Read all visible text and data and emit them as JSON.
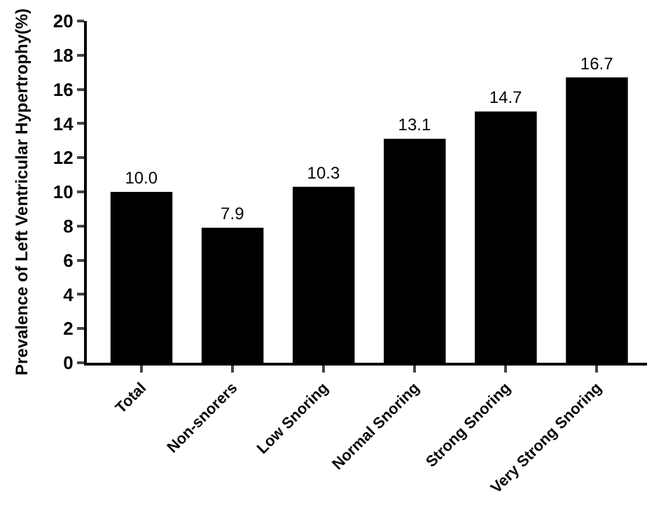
{
  "chart_data": {
    "type": "bar",
    "ylabel": "Prevalence of Left Ventricular Hypertrophy(%)",
    "categories": [
      "Total",
      "Non-snorers",
      "Low Snoring",
      "Normal Snoring",
      "Strong Snoring",
      "Very Strong Snoring"
    ],
    "values": [
      10.0,
      7.9,
      10.3,
      13.1,
      14.7,
      16.7
    ],
    "value_labels": [
      "10.0",
      "7.9",
      "10.3",
      "13.1",
      "14.7",
      "16.7"
    ],
    "color": "#000000",
    "ylim": [
      0,
      20
    ],
    "yticks": [
      0,
      2,
      4,
      6,
      8,
      10,
      12,
      14,
      16,
      18,
      20
    ],
    "legend": false
  }
}
